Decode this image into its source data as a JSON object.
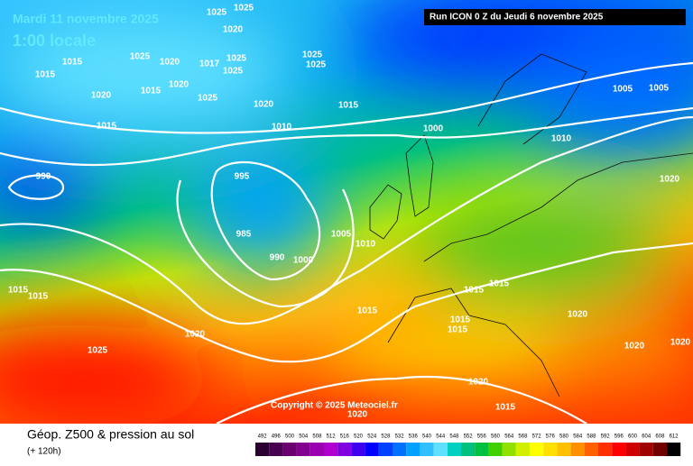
{
  "header": {
    "date": "Mardi 11 novembre 2025",
    "time": "1:00 locale",
    "run": "Run ICON 0 Z du Jeudi 6 novembre 2025"
  },
  "copyright": "Copyright © 2025 Meteociel.fr",
  "footer": {
    "title": "Géop. Z500 & pression au sol",
    "lead": "(+ 120h)"
  },
  "isobar_labels": [
    1025,
    1025,
    1020,
    1015,
    1025,
    1020,
    1017,
    1025,
    1025,
    1025,
    1025,
    1015,
    1020,
    1015,
    1020,
    1025,
    1020,
    1015,
    1010,
    1015,
    1000,
    1010,
    1005,
    1005,
    1020,
    990,
    995,
    985,
    990,
    1000,
    1005,
    1010,
    1015,
    1015,
    1015,
    1015,
    1015,
    1015,
    1015,
    1020,
    1020,
    1020,
    1025,
    1020,
    1020,
    1015,
    1020
  ],
  "legend": {
    "values": [
      492,
      496,
      500,
      504,
      508,
      512,
      516,
      520,
      524,
      528,
      532,
      536,
      540,
      544,
      548,
      552,
      556,
      560,
      564,
      568,
      572,
      576,
      580,
      584,
      588,
      592,
      596,
      600,
      604,
      608,
      612
    ],
    "colors": [
      "#2a0030",
      "#4a0050",
      "#6a0070",
      "#800090",
      "#9a00b0",
      "#b000d0",
      "#8000e0",
      "#4000f0",
      "#0000ff",
      "#0040ff",
      "#0070ff",
      "#00a0ff",
      "#30c0ff",
      "#60e0ff",
      "#00d0c0",
      "#00c080",
      "#00c040",
      "#40d000",
      "#90e000",
      "#d0f000",
      "#ffff00",
      "#ffe000",
      "#ffc000",
      "#ff9000",
      "#ff6000",
      "#ff3000",
      "#ff0000",
      "#d00000",
      "#a00000",
      "#700000",
      "#000000"
    ]
  }
}
